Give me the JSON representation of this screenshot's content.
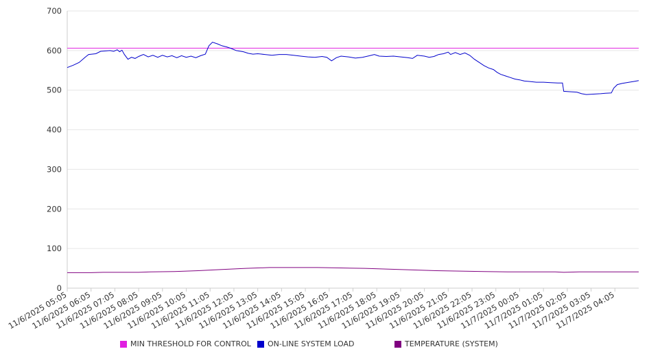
{
  "chart_data": {
    "type": "line",
    "title": "",
    "xlabel": "",
    "ylabel": "",
    "ylim": [
      0,
      700
    ],
    "yticks": [
      0,
      100,
      200,
      300,
      400,
      500,
      600,
      700
    ],
    "ytick_labels": [
      "0",
      "100",
      "200",
      "300",
      "400",
      "500",
      "600",
      "700"
    ],
    "grid": "horizontal",
    "legend_placement": "bottom",
    "x_tick_labels": [
      "11/6/2025 05:05",
      "11/6/2025 06:05",
      "11/6/2025 07:05",
      "11/6/2025 08:05",
      "11/6/2025 09:05",
      "11/6/2025 10:05",
      "11/6/2025 11:05",
      "11/6/2025 12:05",
      "11/6/2025 13:05",
      "11/6/2025 14:05",
      "11/6/2025 15:05",
      "11/6/2025 16:05",
      "11/6/2025 17:05",
      "11/6/2025 18:05",
      "11/6/2025 19:05",
      "11/6/2025 20:05",
      "11/6/2025 21:05",
      "11/6/2025 22:05",
      "11/6/2025 23:05",
      "11/7/2025 00:05",
      "11/7/2025 01:05",
      "11/7/2025 02:05",
      "11/7/2025 03:05",
      "11/7/2025 04:05"
    ],
    "series": [
      {
        "name": "MIN THRESHOLD FOR CONTROL",
        "color": "#e020e0",
        "points": [
          [
            0,
            606
          ],
          [
            24,
            606
          ]
        ]
      },
      {
        "name": "ON-LINE SYSTEM LOAD",
        "color": "#0000cc",
        "points": [
          [
            0.0,
            557
          ],
          [
            0.25,
            563
          ],
          [
            0.5,
            570
          ],
          [
            0.75,
            583
          ],
          [
            0.9,
            590
          ],
          [
            1.2,
            592
          ],
          [
            1.4,
            598
          ],
          [
            1.8,
            600
          ],
          [
            1.95,
            598
          ],
          [
            2.1,
            602
          ],
          [
            2.2,
            597
          ],
          [
            2.3,
            601
          ],
          [
            2.4,
            590
          ],
          [
            2.55,
            578
          ],
          [
            2.7,
            583
          ],
          [
            2.85,
            580
          ],
          [
            3.0,
            585
          ],
          [
            3.2,
            590
          ],
          [
            3.4,
            584
          ],
          [
            3.6,
            588
          ],
          [
            3.8,
            583
          ],
          [
            4.0,
            588
          ],
          [
            4.2,
            584
          ],
          [
            4.4,
            587
          ],
          [
            4.6,
            582
          ],
          [
            4.8,
            587
          ],
          [
            5.0,
            583
          ],
          [
            5.2,
            586
          ],
          [
            5.4,
            582
          ],
          [
            5.6,
            587
          ],
          [
            5.8,
            591
          ],
          [
            5.95,
            612
          ],
          [
            6.1,
            621
          ],
          [
            6.3,
            617
          ],
          [
            6.5,
            612
          ],
          [
            6.7,
            609
          ],
          [
            6.9,
            605
          ],
          [
            7.1,
            600
          ],
          [
            7.4,
            597
          ],
          [
            7.6,
            593
          ],
          [
            7.8,
            591
          ],
          [
            8.0,
            592
          ],
          [
            8.3,
            590
          ],
          [
            8.6,
            588
          ],
          [
            8.9,
            590
          ],
          [
            9.2,
            590
          ],
          [
            9.5,
            588
          ],
          [
            9.8,
            586
          ],
          [
            10.1,
            584
          ],
          [
            10.4,
            583
          ],
          [
            10.7,
            585
          ],
          [
            10.9,
            583
          ],
          [
            11.1,
            574
          ],
          [
            11.3,
            582
          ],
          [
            11.5,
            586
          ],
          [
            11.8,
            584
          ],
          [
            12.1,
            581
          ],
          [
            12.4,
            583
          ],
          [
            12.7,
            587
          ],
          [
            12.9,
            590
          ],
          [
            13.1,
            586
          ],
          [
            13.4,
            585
          ],
          [
            13.7,
            586
          ],
          [
            14.0,
            584
          ],
          [
            14.3,
            582
          ],
          [
            14.5,
            580
          ],
          [
            14.7,
            588
          ],
          [
            15.0,
            586
          ],
          [
            15.2,
            583
          ],
          [
            15.4,
            585
          ],
          [
            15.6,
            590
          ],
          [
            15.8,
            592
          ],
          [
            16.0,
            596
          ],
          [
            16.1,
            590
          ],
          [
            16.3,
            595
          ],
          [
            16.5,
            590
          ],
          [
            16.7,
            594
          ],
          [
            16.9,
            588
          ],
          [
            17.1,
            578
          ],
          [
            17.3,
            570
          ],
          [
            17.5,
            562
          ],
          [
            17.7,
            556
          ],
          [
            17.9,
            552
          ],
          [
            18.05,
            545
          ],
          [
            18.2,
            540
          ],
          [
            18.4,
            536
          ],
          [
            18.6,
            532
          ],
          [
            18.8,
            528
          ],
          [
            19.0,
            526
          ],
          [
            19.2,
            523
          ],
          [
            19.4,
            522
          ],
          [
            19.7,
            520
          ],
          [
            20.0,
            520
          ],
          [
            20.3,
            519
          ],
          [
            20.6,
            518
          ],
          [
            20.8,
            518
          ],
          [
            20.85,
            497
          ],
          [
            21.1,
            496
          ],
          [
            21.4,
            495
          ],
          [
            21.6,
            491
          ],
          [
            21.8,
            489
          ],
          [
            22.1,
            490
          ],
          [
            22.4,
            491
          ],
          [
            22.6,
            492
          ],
          [
            22.85,
            493
          ],
          [
            22.95,
            505
          ],
          [
            23.1,
            514
          ],
          [
            23.3,
            517
          ],
          [
            23.6,
            520
          ],
          [
            23.8,
            522
          ],
          [
            24.0,
            524
          ]
        ]
      },
      {
        "name": "TEMPERATURE (SYSTEM)",
        "color": "#800080",
        "points": [
          [
            0.0,
            39
          ],
          [
            1.0,
            39
          ],
          [
            1.5,
            40
          ],
          [
            3.0,
            40
          ],
          [
            3.5,
            41
          ],
          [
            4.5,
            42
          ],
          [
            5.5,
            44
          ],
          [
            6.5,
            47
          ],
          [
            7.5,
            50
          ],
          [
            8.5,
            52
          ],
          [
            9.5,
            52
          ],
          [
            10.5,
            52
          ],
          [
            11.5,
            51
          ],
          [
            12.5,
            50
          ],
          [
            13.5,
            48
          ],
          [
            14.5,
            46
          ],
          [
            15.5,
            44
          ],
          [
            16.5,
            43
          ],
          [
            17.5,
            42
          ],
          [
            18.5,
            41
          ],
          [
            19.5,
            41
          ],
          [
            20.5,
            41
          ],
          [
            20.85,
            40
          ],
          [
            21.5,
            41
          ],
          [
            22.5,
            41
          ],
          [
            23.5,
            41
          ],
          [
            24.0,
            41
          ]
        ]
      }
    ]
  }
}
